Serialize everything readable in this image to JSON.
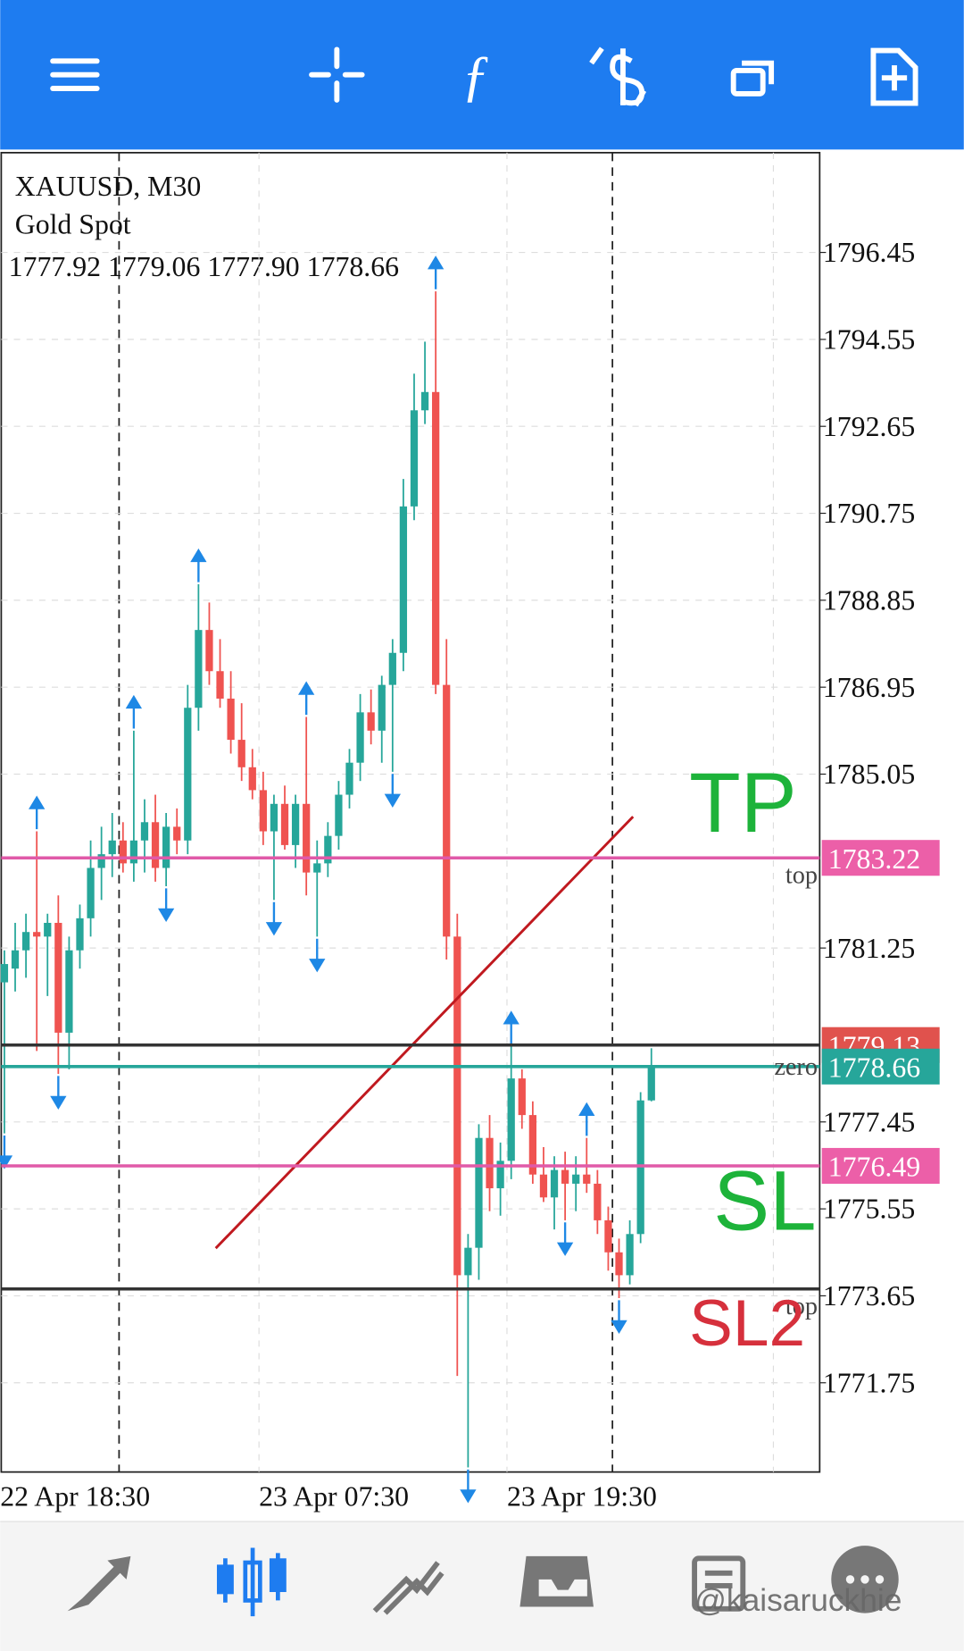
{
  "app": {
    "watermark": "@kaisaruckhie"
  },
  "chart_data": {
    "type": "candlestick",
    "title": "XAUUSD, M30",
    "subtitle": "Gold Spot",
    "ohlc_text": [
      "1777.92",
      "1779.06",
      "1777.90",
      "1778.66"
    ],
    "categories": [
      "22 Apr 18:30",
      null,
      null,
      null,
      null,
      null,
      null,
      null,
      null,
      null,
      null,
      null,
      null,
      null,
      null,
      null,
      null,
      null,
      null,
      null,
      null,
      null,
      null,
      null,
      "23 Apr 07:30",
      null,
      null,
      null,
      null,
      null,
      null,
      null,
      null,
      null,
      null,
      null,
      null,
      null,
      null,
      null,
      null,
      null,
      null,
      null,
      null,
      null,
      null,
      "23 Apr 19:30",
      null,
      null,
      null,
      null,
      null,
      null,
      null,
      null,
      null,
      null,
      null,
      null,
      null
    ],
    "open": [
      1780.5,
      1780.8,
      1781.2,
      1781.6,
      1781.5,
      1781.8,
      1779.4,
      1781.2,
      1781.9,
      1783.0,
      1783.3,
      1783.6,
      1783.1,
      1783.6,
      1784.0,
      1783.0,
      1783.9,
      1783.6,
      1786.5,
      1788.2,
      1787.3,
      1786.7,
      1785.8,
      1785.2,
      1784.7,
      1783.8,
      1784.4,
      1783.5,
      1784.4,
      1782.9,
      1783.1,
      1783.7,
      1784.6,
      1785.3,
      1786.4,
      1786.0,
      1787.0,
      1787.7,
      1790.9,
      1793.0,
      1793.4,
      1787.0,
      1781.5,
      1774.1,
      1774.7,
      1777.1,
      1776.0,
      1776.6,
      1778.4,
      1777.6,
      1776.3,
      1775.8,
      1776.4,
      1776.1,
      1776.3,
      1776.1,
      1775.3,
      1774.6,
      1774.1,
      1775.0,
      1777.92
    ],
    "high": [
      1781.2,
      1781.8,
      1782.0,
      1783.8,
      1782.0,
      1782.4,
      1781.5,
      1782.2,
      1783.6,
      1783.9,
      1784.2,
      1784.0,
      1786.0,
      1784.5,
      1784.6,
      1784.2,
      1784.3,
      1787.0,
      1789.2,
      1788.8,
      1788.0,
      1787.3,
      1786.6,
      1785.6,
      1785.1,
      1784.6,
      1784.8,
      1784.6,
      1786.3,
      1783.6,
      1784.0,
      1784.9,
      1785.6,
      1786.8,
      1786.9,
      1787.2,
      1788.0,
      1791.5,
      1793.8,
      1794.5,
      1795.6,
      1788.0,
      1782.0,
      1775.0,
      1777.4,
      1777.6,
      1777.0,
      1779.1,
      1778.6,
      1777.9,
      1776.9,
      1776.7,
      1776.8,
      1776.7,
      1777.1,
      1776.4,
      1775.6,
      1774.9,
      1775.3,
      1778.1,
      1779.06
    ],
    "low": [
      1777.2,
      1780.3,
      1780.6,
      1779.0,
      1780.2,
      1778.5,
      1778.6,
      1780.8,
      1781.5,
      1782.3,
      1782.8,
      1782.9,
      1782.7,
      1782.9,
      1782.7,
      1782.6,
      1783.3,
      1783.3,
      1786.0,
      1787.0,
      1786.5,
      1785.5,
      1784.9,
      1784.5,
      1783.5,
      1782.3,
      1783.4,
      1783.0,
      1782.4,
      1781.5,
      1782.8,
      1783.4,
      1784.3,
      1784.9,
      1785.7,
      1785.3,
      1785.1,
      1787.3,
      1790.6,
      1792.7,
      1786.8,
      1781.0,
      1771.9,
      1769.9,
      1774.0,
      1775.5,
      1775.4,
      1776.2,
      1777.3,
      1776.1,
      1775.7,
      1775.1,
      1775.3,
      1775.5,
      1775.9,
      1775.0,
      1774.2,
      1773.6,
      1773.9,
      1774.8,
      1777.9
    ],
    "close": [
      1780.9,
      1781.2,
      1781.6,
      1781.5,
      1781.8,
      1779.4,
      1781.2,
      1781.9,
      1783.0,
      1783.3,
      1783.6,
      1783.1,
      1783.6,
      1784.0,
      1783.0,
      1783.9,
      1783.6,
      1786.5,
      1788.2,
      1787.3,
      1786.7,
      1785.8,
      1785.2,
      1784.7,
      1783.8,
      1784.4,
      1783.5,
      1784.4,
      1782.9,
      1783.1,
      1783.7,
      1784.6,
      1785.3,
      1786.4,
      1786.0,
      1787.0,
      1787.7,
      1790.9,
      1793.0,
      1793.4,
      1787.0,
      1781.5,
      1774.1,
      1774.7,
      1777.1,
      1776.0,
      1776.6,
      1778.4,
      1777.6,
      1776.3,
      1775.8,
      1776.4,
      1776.1,
      1776.3,
      1776.1,
      1775.3,
      1774.6,
      1774.1,
      1775.0,
      1777.92,
      1778.66
    ],
    "up_color": "#26a69a",
    "down_color": "#ef5350",
    "fractal_color": "#1e88e5",
    "fractals": {
      "up": [
        3,
        12,
        18,
        28,
        40,
        47,
        54
      ],
      "down": [
        0,
        5,
        15,
        25,
        29,
        36,
        43,
        52,
        57
      ]
    },
    "ylim": [
      1769.8,
      1798.63
    ],
    "yticks": [
      1796.45,
      1794.55,
      1792.65,
      1790.75,
      1788.85,
      1786.95,
      1785.05,
      1781.25,
      1777.45,
      1775.55,
      1773.65,
      1771.75
    ],
    "grid": true,
    "levels": [
      {
        "value": 1779.13,
        "color": "#333333",
        "badge": "#e0524d"
      },
      {
        "value": 1783.22,
        "color": "#e05aa8",
        "badge": "#ec5fa8",
        "note": "top"
      },
      {
        "value": 1778.66,
        "color": "#26a69a",
        "badge": "#26a69a",
        "note": "zero"
      },
      {
        "value": 1776.49,
        "color": "#e05aa8",
        "badge": "#ec5fa8"
      },
      {
        "value": 1773.8,
        "color": "#333333",
        "note": "top"
      }
    ],
    "trendline": {
      "x": [
        19.6,
        58.3
      ],
      "y": [
        1774.69,
        1784.12
      ],
      "color": "#c0191f"
    },
    "annotations": [
      {
        "text": "TP",
        "color": "#1db33a"
      },
      {
        "text": "SL",
        "color": "#1db33a"
      },
      {
        "text": "SL2",
        "color": "#d6303c"
      }
    ]
  }
}
